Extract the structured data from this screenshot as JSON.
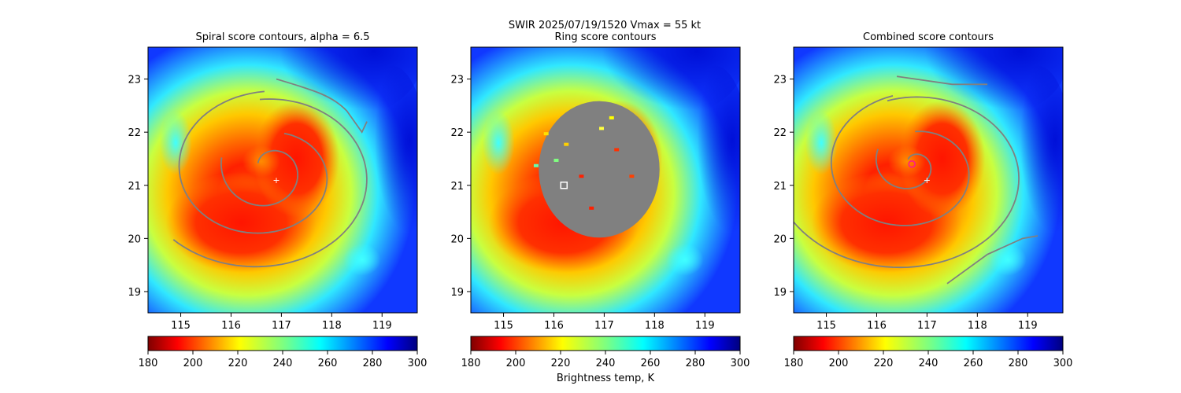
{
  "suptitle": "SWIR  2025/07/19/1520    Vmax = 55 kt",
  "colorbar_label": "Brightness temp, K",
  "colors": {
    "contour": "#808080",
    "mask": "#808080",
    "center_marker": "#ffffff",
    "combined_marker": "#ff1493"
  },
  "chart_data": [
    {
      "type": "heatmap",
      "title": "Spiral score contours, alpha =  6.5",
      "xlim": [
        114.35,
        119.7
      ],
      "ylim": [
        18.6,
        23.6
      ],
      "xticks": [
        "115",
        "116",
        "117",
        "118",
        "119"
      ],
      "yticks": [
        "19",
        "20",
        "21",
        "22",
        "23"
      ],
      "colorbar": {
        "ticks": [
          "180",
          "200",
          "220",
          "240",
          "260",
          "280",
          "300"
        ],
        "range": [
          180,
          300
        ],
        "colormap": "jet_r"
      },
      "center_marker": {
        "x": 116.9,
        "y": 21.1,
        "symbol": "+"
      },
      "contours": "spiral"
    },
    {
      "type": "heatmap",
      "title": "Ring score contours",
      "xlim": [
        114.35,
        119.7
      ],
      "ylim": [
        18.6,
        23.6
      ],
      "xticks": [
        "115",
        "116",
        "117",
        "118",
        "119"
      ],
      "yticks": [
        "19",
        "20",
        "21",
        "22",
        "23"
      ],
      "colorbar": {
        "ticks": [
          "180",
          "200",
          "220",
          "240",
          "260",
          "280",
          "300"
        ],
        "range": [
          180,
          300
        ],
        "colormap": "jet_r"
      },
      "ring_mask": {
        "center_x": 116.9,
        "center_y": 21.3,
        "radius_deg": 1.2
      },
      "center_marker": {
        "x": 116.2,
        "y": 21.0,
        "symbol": "square"
      }
    },
    {
      "type": "heatmap",
      "title": "Combined score contours",
      "xlim": [
        114.35,
        119.7
      ],
      "ylim": [
        18.6,
        23.6
      ],
      "xticks": [
        "115",
        "116",
        "117",
        "118",
        "119"
      ],
      "yticks": [
        "19",
        "20",
        "21",
        "22",
        "23"
      ],
      "colorbar": {
        "ticks": [
          "180",
          "200",
          "220",
          "240",
          "260",
          "280",
          "300"
        ],
        "range": [
          180,
          300
        ],
        "colormap": "jet_r"
      },
      "center_marker": {
        "x": 116.7,
        "y": 21.4,
        "symbol": "circle"
      },
      "second_marker": {
        "x": 117.0,
        "y": 21.1,
        "symbol": "+"
      },
      "contours": "combined"
    }
  ]
}
